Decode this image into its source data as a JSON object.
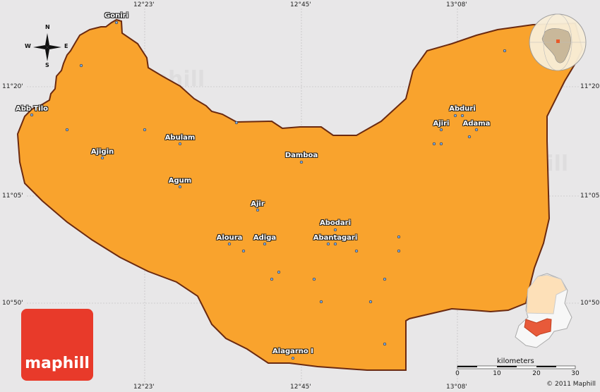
{
  "colors": {
    "region": "#f9a32d",
    "border": "#6b2a10",
    "background": "#e8e7e8",
    "highlight": "#e85a3a",
    "logo": "#e83a2a"
  },
  "coords": {
    "top": [
      "12°23'",
      "12°45'",
      "13°08'"
    ],
    "bottom": [
      "12°23'",
      "12°45'",
      "13°08'"
    ],
    "left": [
      "11°20'",
      "11°05'",
      "10°50'"
    ],
    "right": [
      "11°20'",
      "11°05'",
      "10°50'"
    ]
  },
  "compass": {
    "n": "N",
    "s": "S",
    "e": "E",
    "w": "W"
  },
  "cities": [
    {
      "name": "Goniri"
    },
    {
      "name": "Abb Tilo"
    },
    {
      "name": "Abulam"
    },
    {
      "name": "Ajigin"
    },
    {
      "name": "Agum"
    },
    {
      "name": "Damboa"
    },
    {
      "name": "Ajir"
    },
    {
      "name": "Aloura"
    },
    {
      "name": "Adiga"
    },
    {
      "name": "Abodari"
    },
    {
      "name": "Abantagari"
    },
    {
      "name": "Abduri"
    },
    {
      "name": "Ajiri"
    },
    {
      "name": "Adama"
    },
    {
      "name": "Alagarno I"
    }
  ],
  "watermark": "maphill",
  "logo": {
    "text": "maphill"
  },
  "scale": {
    "unit": "kilometers",
    "ticks": [
      "0",
      "10",
      "20",
      "30"
    ]
  },
  "copyright": "© 2011 Maphill"
}
